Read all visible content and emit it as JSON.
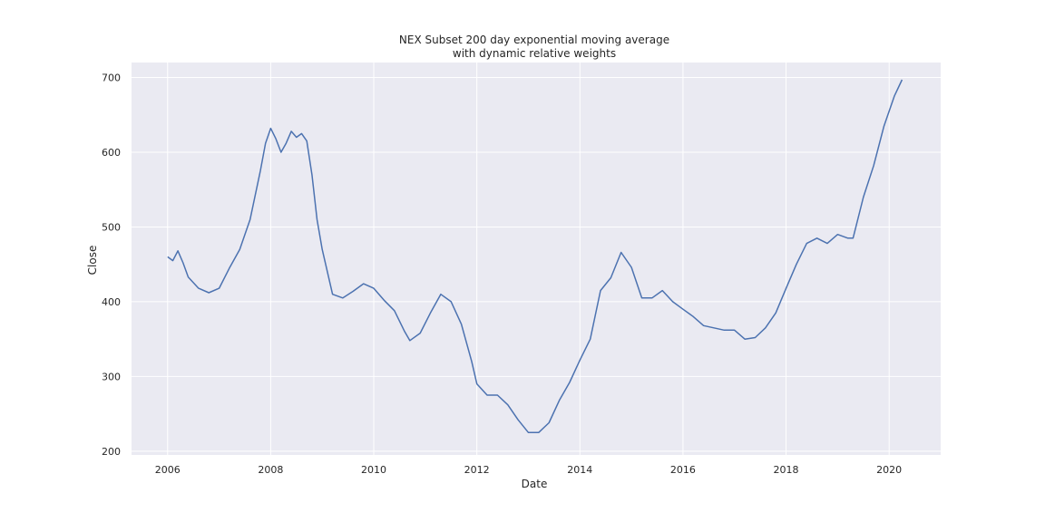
{
  "chart_data": {
    "type": "line",
    "title_lines": [
      "NEX Subset 200 day exponential moving average",
      "with dynamic relative weights"
    ],
    "xlabel": "Date",
    "ylabel": "Close",
    "xlim": [
      2005.3,
      2021.0
    ],
    "ylim": [
      195,
      720
    ],
    "x_ticks": [
      2006,
      2008,
      2010,
      2012,
      2014,
      2016,
      2018,
      2020
    ],
    "y_ticks": [
      200,
      300,
      400,
      500,
      600,
      700
    ],
    "grid": true,
    "legend": "none",
    "colors": {
      "line": "#4c72b0",
      "plot_bg": "#eaeaf2",
      "grid": "#ffffff"
    },
    "series": [
      {
        "x": [
          2006.0,
          2006.1,
          2006.2,
          2006.3,
          2006.4,
          2006.6,
          2006.8,
          2007.0,
          2007.2,
          2007.4,
          2007.6,
          2007.8,
          2007.9,
          2008.0,
          2008.1,
          2008.2,
          2008.3,
          2008.4,
          2008.5,
          2008.6,
          2008.7,
          2008.8,
          2008.9,
          2009.0,
          2009.2,
          2009.4,
          2009.6,
          2009.8,
          2010.0,
          2010.2,
          2010.4,
          2010.6,
          2010.7,
          2010.9,
          2011.1,
          2011.3,
          2011.5,
          2011.7,
          2011.9,
          2012.0,
          2012.2,
          2012.4,
          2012.6,
          2012.8,
          2013.0,
          2013.2,
          2013.4,
          2013.6,
          2013.8,
          2014.0,
          2014.2,
          2014.4,
          2014.6,
          2014.8,
          2015.0,
          2015.2,
          2015.4,
          2015.6,
          2015.8,
          2016.0,
          2016.2,
          2016.4,
          2016.6,
          2016.8,
          2017.0,
          2017.2,
          2017.4,
          2017.6,
          2017.8,
          2018.0,
          2018.2,
          2018.4,
          2018.6,
          2018.8,
          2019.0,
          2019.2,
          2019.3,
          2019.5,
          2019.7,
          2019.9,
          2020.0,
          2020.1,
          2020.25
        ],
        "y": [
          460,
          455,
          468,
          452,
          433,
          418,
          412,
          418,
          445,
          470,
          510,
          575,
          612,
          632,
          618,
          600,
          612,
          628,
          620,
          625,
          615,
          570,
          510,
          470,
          410,
          405,
          414,
          424,
          418,
          402,
          388,
          360,
          348,
          358,
          385,
          410,
          400,
          370,
          320,
          290,
          275,
          275,
          262,
          242,
          225,
          225,
          238,
          268,
          292,
          322,
          350,
          415,
          432,
          466,
          446,
          405,
          405,
          415,
          400,
          390,
          380,
          368,
          365,
          362,
          362,
          350,
          352,
          365,
          385,
          418,
          450,
          478,
          485,
          478,
          490,
          485,
          485,
          540,
          582,
          635,
          655,
          675,
          697
        ]
      }
    ]
  }
}
